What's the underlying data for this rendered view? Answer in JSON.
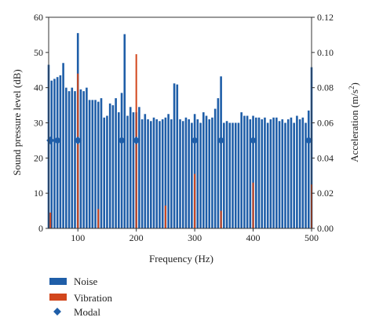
{
  "chart_data": {
    "type": "bar",
    "xlabel": "Frequency (Hz)",
    "ylabel_left": "Sound pressure level (dB)",
    "ylabel_right": "Acceleration (m/s",
    "ylabel_right_sup": "2",
    "ylabel_right_end": ")",
    "xlim": [
      50,
      500
    ],
    "ylim_left": [
      0,
      60
    ],
    "ylim_right": [
      0,
      0.12
    ],
    "x_ticks": [
      100,
      200,
      300,
      400,
      500
    ],
    "y_left_ticks": [
      0,
      10,
      20,
      30,
      40,
      50,
      60
    ],
    "y_right_ticks": [
      "0.00",
      "0.02",
      "0.04",
      "0.06",
      "0.08",
      "0.10",
      "0.12"
    ],
    "colors": {
      "noise": "#1f5ea8",
      "vibration": "#d2461c",
      "modal": "#1f5ea8"
    },
    "noise": {
      "name": "Noise",
      "x": [
        50,
        55,
        60,
        65,
        70,
        75,
        80,
        85,
        90,
        95,
        100,
        105,
        110,
        115,
        120,
        125,
        130,
        135,
        140,
        145,
        150,
        155,
        160,
        165,
        170,
        175,
        180,
        185,
        190,
        195,
        200,
        205,
        210,
        215,
        220,
        225,
        230,
        235,
        240,
        245,
        250,
        255,
        260,
        265,
        270,
        275,
        280,
        285,
        290,
        295,
        300,
        305,
        310,
        315,
        320,
        325,
        330,
        335,
        340,
        345,
        350,
        355,
        360,
        365,
        370,
        375,
        380,
        385,
        390,
        395,
        400,
        405,
        410,
        415,
        420,
        425,
        430,
        435,
        440,
        445,
        450,
        455,
        460,
        465,
        470,
        475,
        480,
        485,
        490,
        495,
        500
      ],
      "values": [
        46.5,
        42,
        42.5,
        43,
        43.5,
        47,
        40,
        39,
        40,
        39,
        55.5,
        39.5,
        39,
        40,
        36.5,
        36.5,
        36.5,
        36,
        37,
        31.5,
        32,
        35.5,
        35,
        37,
        33,
        38.5,
        55.2,
        32,
        34.5,
        33,
        33,
        34.5,
        31,
        32.5,
        31,
        30.5,
        31.5,
        31,
        30.5,
        31,
        31.5,
        32.5,
        31,
        41.2,
        40.9,
        31,
        30.5,
        31.5,
        31,
        30,
        32.5,
        31,
        30,
        33,
        32,
        31,
        31.5,
        34,
        37,
        43.2,
        30,
        30.5,
        30,
        30,
        30,
        30,
        33,
        32,
        32,
        31,
        32,
        31.5,
        31.5,
        31,
        31.5,
        30,
        31,
        31.5,
        31.5,
        30.5,
        31,
        30,
        31,
        31.5,
        30,
        32,
        31,
        31.5,
        30,
        33.5,
        45.8
      ]
    },
    "vibration": {
      "name": "Vibration",
      "x": [
        53,
        100,
        135,
        200,
        250,
        300,
        345,
        400,
        500
      ],
      "values": [
        0.009,
        0.088,
        0.011,
        0.099,
        0.013,
        0.031,
        0.01,
        0.026,
        0.025
      ]
    },
    "modal": {
      "name": "Modal",
      "x": [
        53,
        65,
        100,
        175,
        200,
        300,
        345,
        400,
        495
      ],
      "values": [
        0.05,
        0.05,
        0.05,
        0.05,
        0.05,
        0.05,
        0.05,
        0.05,
        0.05
      ]
    }
  }
}
